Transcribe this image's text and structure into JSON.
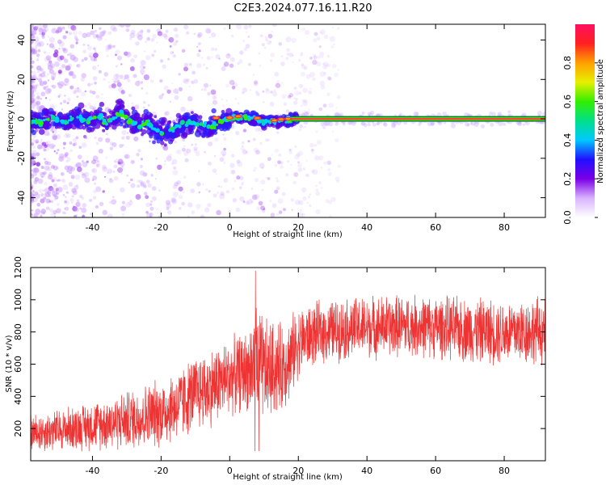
{
  "figure": {
    "title": "C2E3.2024.077.16.11.R20"
  },
  "chart_data": [
    {
      "type": "heatmap",
      "xlabel": "Height of straight line (km)",
      "ylabel": "Frequency (Hz)",
      "xlim": [
        -58,
        92
      ],
      "ylim": [
        -50,
        48
      ],
      "xticks": [
        -40,
        -20,
        0,
        20,
        40,
        60,
        80
      ],
      "yticks": [
        -40,
        -20,
        0,
        20,
        40
      ],
      "colorbar": {
        "label": "Normalized spectral amplitude",
        "range": [
          0,
          1
        ],
        "ticks": [
          0.0,
          0.2,
          0.4,
          0.6,
          0.8
        ],
        "colormap": [
          "#ffffff",
          "#d9b3ff",
          "#7a00e6",
          "#2010ff",
          "#00c8ff",
          "#00e08a",
          "#33ee00",
          "#e6f000",
          "#ffa000",
          "#ff2020",
          "#ff1060"
        ]
      },
      "ridge": {
        "x": [
          -58,
          -55,
          -52,
          -50,
          -48,
          -46,
          -44,
          -42,
          -40,
          -38,
          -36,
          -34,
          -32,
          -30,
          -28,
          -26,
          -24,
          -22,
          -20,
          -18,
          -16,
          -14,
          -12,
          -10,
          -8,
          -6,
          -4,
          -2,
          0,
          2,
          4,
          6,
          8,
          10,
          12,
          14,
          16,
          18,
          20,
          30,
          40,
          50,
          60,
          70,
          80,
          92
        ],
        "freq": [
          -1,
          -2,
          1,
          0,
          -2,
          0,
          1,
          -1,
          0,
          1,
          -2,
          0,
          3,
          0,
          -2,
          -4,
          -1,
          -5,
          -7,
          -6,
          -5,
          -3,
          -2,
          -2,
          -3,
          -4,
          -3,
          -1,
          0,
          1,
          1,
          0,
          0,
          -2,
          -1,
          -2,
          -1,
          0,
          0,
          0,
          0,
          0,
          0,
          0,
          0,
          0
        ]
      }
    },
    {
      "type": "line",
      "xlabel": "Height of straight line (km)",
      "ylabel": "SNR (10 * v/v)",
      "xlim": [
        -58,
        92
      ],
      "ylim": [
        0,
        1200
      ],
      "xticks": [
        -40,
        -20,
        0,
        20,
        40,
        60,
        80
      ],
      "yticks": [
        200,
        400,
        600,
        800,
        1000,
        1200
      ],
      "series": [
        {
          "color": "#ee3333",
          "x": [
            -58,
            -50,
            -40,
            -30,
            -20,
            -15,
            -10,
            -5,
            0,
            5,
            8,
            10,
            15,
            18,
            20,
            25,
            30,
            40,
            50,
            60,
            70,
            80,
            92
          ],
          "mean": [
            170,
            190,
            220,
            250,
            300,
            350,
            420,
            460,
            520,
            560,
            600,
            560,
            580,
            650,
            740,
            790,
            810,
            830,
            840,
            830,
            810,
            800,
            810
          ],
          "spread": [
            110,
            120,
            140,
            170,
            200,
            210,
            220,
            230,
            220,
            230,
            350,
            300,
            260,
            240,
            200,
            180,
            180,
            180,
            180,
            180,
            190,
            190,
            200
          ]
        }
      ]
    }
  ]
}
